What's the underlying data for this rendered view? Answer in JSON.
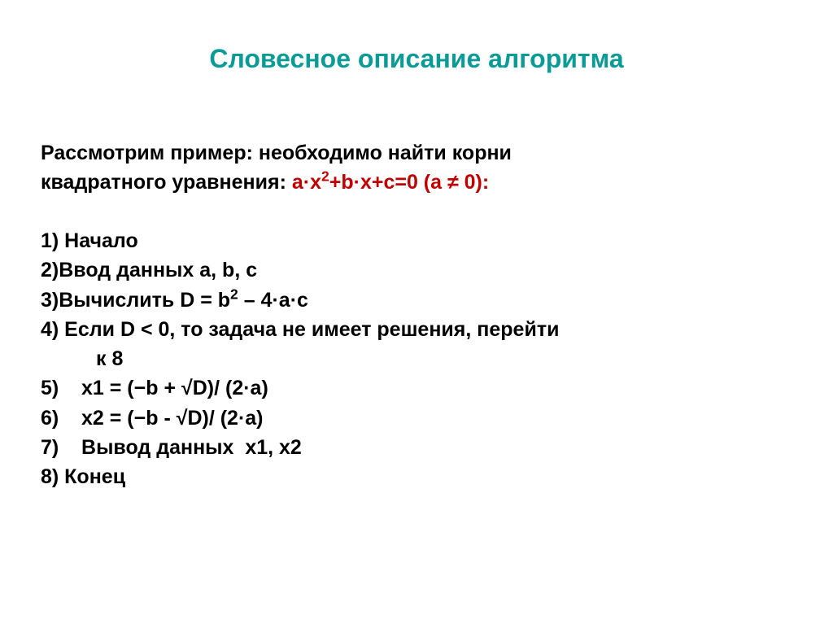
{
  "title": {
    "text": "Словесное описание алгоритма",
    "color": "#0b9b97",
    "fontsize": 32
  },
  "body": {
    "color": "#000000",
    "accent_color": "#c00000",
    "fontsize": 25
  },
  "intro": {
    "line1": "Рассмотрим пример: необходимо найти корни",
    "line2_prefix": "квадратного уравнения: ",
    "equation_a": "а·х",
    "equation_b": "+b·х+с=0 (а ≠ 0):",
    "exp2": "2"
  },
  "steps": {
    "s1": "1) Начало",
    "s2": "2)Ввод данных a, b, c",
    "s3_prefix": "3)Вычислить D = b",
    "s3_exp": "2",
    "s3_suffix": " – 4·a·c",
    "s4": "4) Если D < 0,  то задача не имеет решения, перейти",
    "s4_cont": "к 8",
    "s5": "5)    x1 = (−b + √D)/ (2·a)",
    "s6": "6)    x2 = (−b - √D)/ (2·a)",
    "s7": "7)    Вывод данных  x1, x2",
    "s8": "8) Конец"
  }
}
